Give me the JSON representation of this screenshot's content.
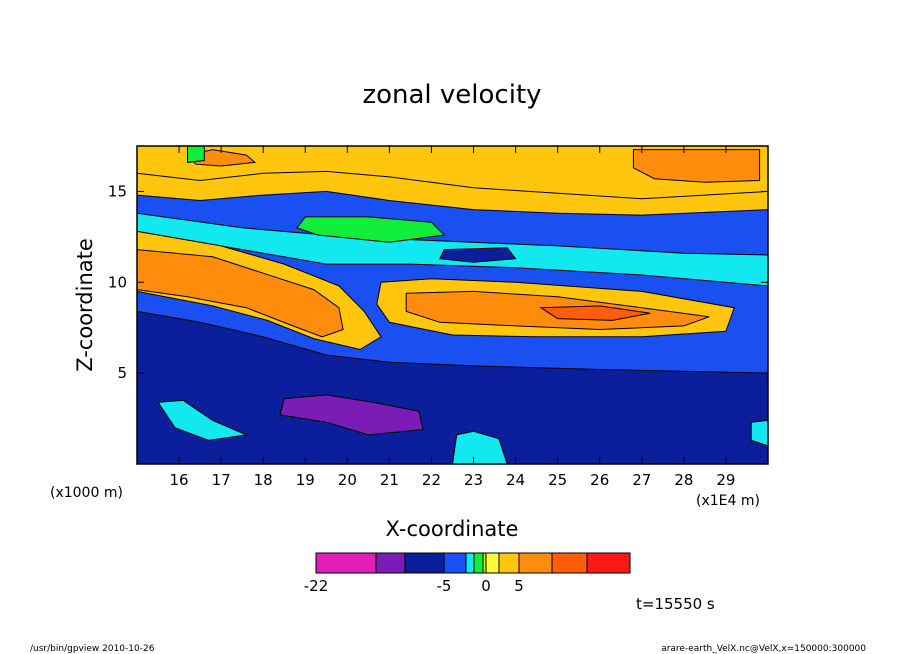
{
  "chart_data": {
    "type": "contour",
    "title": "zonal velocity",
    "xlabel": "X-coordinate",
    "ylabel": "Z-coordinate",
    "x_unit_label": "(x1E4 m)",
    "y_unit_label": "(x1000 m)",
    "xlim": [
      15.0,
      30.0
    ],
    "ylim": [
      0.0,
      17.5
    ],
    "x_ticks": [
      "16",
      "17",
      "18",
      "19",
      "20",
      "21",
      "22",
      "23",
      "24",
      "25",
      "26",
      "27",
      "28",
      "29"
    ],
    "x_tick_values": [
      16,
      17,
      18,
      19,
      20,
      21,
      22,
      23,
      24,
      25,
      26,
      27,
      28,
      29
    ],
    "y_ticks": [
      "5",
      "10",
      "15"
    ],
    "y_tick_values": [
      5,
      10,
      15
    ],
    "colorbar": {
      "colors": [
        "#e01fb8",
        "#7a1cb5",
        "#0b1f9c",
        "#1a4ff2",
        "#12e8f0",
        "#11ee3a",
        "#b5f21a",
        "#fbfb37",
        "#ffc60d",
        "#ff8c0c",
        "#ff5d0a",
        "#f81a13",
        "#f88787"
      ],
      "bounds": [
        -22,
        -15,
        -10,
        -5,
        -3,
        -2,
        -1,
        0,
        1,
        5,
        10,
        15,
        20
      ],
      "labels": [
        "-22",
        "-5",
        "0",
        "5"
      ],
      "label_values": [
        -22,
        -5,
        0,
        5
      ]
    },
    "regions": [
      {
        "name": "upper-surface-positive",
        "level": 1,
        "polygon": [
          [
            15.0,
            17.5
          ],
          [
            30.0,
            17.5
          ],
          [
            30.0,
            14.0
          ],
          [
            27.0,
            13.7
          ],
          [
            25.0,
            13.8
          ],
          [
            23.0,
            14.0
          ],
          [
            21.0,
            14.5
          ],
          [
            19.5,
            15.0
          ],
          [
            18.0,
            14.8
          ],
          [
            16.5,
            14.5
          ],
          [
            15.0,
            14.8
          ]
        ]
      },
      {
        "name": "upper-positive-core",
        "level": 1,
        "polygon": [
          [
            15.0,
            17.5
          ],
          [
            30.0,
            17.5
          ],
          [
            30.0,
            15.0
          ],
          [
            27.0,
            14.6
          ],
          [
            25.0,
            14.9
          ],
          [
            23.0,
            15.2
          ],
          [
            21.0,
            15.8
          ],
          [
            19.5,
            16.1
          ],
          [
            18.0,
            16.0
          ],
          [
            16.5,
            15.6
          ],
          [
            15.0,
            16.0
          ]
        ]
      },
      {
        "name": "upper-orange-right",
        "level": 5,
        "polygon": [
          [
            26.8,
            17.3
          ],
          [
            29.8,
            17.3
          ],
          [
            29.8,
            15.6
          ],
          [
            28.5,
            15.5
          ],
          [
            27.3,
            15.7
          ],
          [
            26.8,
            16.3
          ]
        ]
      },
      {
        "name": "upper-orange-left",
        "level": 5,
        "polygon": [
          [
            16.2,
            17.0
          ],
          [
            16.8,
            17.3
          ],
          [
            17.6,
            17.0
          ],
          [
            17.8,
            16.6
          ],
          [
            17.0,
            16.4
          ],
          [
            16.4,
            16.5
          ]
        ]
      },
      {
        "name": "jet-negative-band",
        "level": -3,
        "polygon": [
          [
            15.0,
            13.8
          ],
          [
            17.5,
            13.0
          ],
          [
            20.0,
            12.5
          ],
          [
            22.0,
            12.3
          ],
          [
            25.0,
            12.0
          ],
          [
            28.0,
            11.6
          ],
          [
            30.0,
            11.5
          ],
          [
            30.0,
            9.8
          ],
          [
            27.0,
            10.4
          ],
          [
            24.0,
            10.8
          ],
          [
            21.5,
            11.0
          ],
          [
            19.5,
            11.0
          ],
          [
            17.5,
            11.8
          ],
          [
            15.0,
            12.8
          ]
        ]
      },
      {
        "name": "jet-negative-core",
        "level": -10,
        "polygon": [
          [
            22.3,
            11.8
          ],
          [
            23.8,
            11.9
          ],
          [
            24.0,
            11.3
          ],
          [
            23.0,
            11.1
          ],
          [
            22.2,
            11.3
          ]
        ]
      },
      {
        "name": "cyan-patch-upper",
        "level": -2,
        "polygon": [
          [
            19.0,
            13.6
          ],
          [
            20.5,
            13.6
          ],
          [
            22.0,
            13.3
          ],
          [
            22.3,
            12.6
          ],
          [
            21.0,
            12.2
          ],
          [
            19.3,
            12.6
          ],
          [
            18.8,
            13.0
          ]
        ]
      },
      {
        "name": "cyan-patch-corner",
        "level": -2,
        "polygon": [
          [
            16.2,
            17.5
          ],
          [
            16.6,
            17.5
          ],
          [
            16.6,
            16.7
          ],
          [
            16.2,
            16.6
          ]
        ]
      },
      {
        "name": "tilted-positive-band",
        "level": 1,
        "polygon": [
          [
            15.0,
            12.8
          ],
          [
            17.0,
            12.0
          ],
          [
            18.5,
            11.0
          ],
          [
            19.8,
            9.8
          ],
          [
            20.4,
            8.4
          ],
          [
            20.8,
            7.0
          ],
          [
            20.3,
            6.3
          ],
          [
            19.2,
            6.9
          ],
          [
            18.1,
            7.9
          ],
          [
            16.8,
            8.7
          ],
          [
            15.0,
            9.5
          ]
        ]
      },
      {
        "name": "tilted-positive-core",
        "level": 5,
        "polygon": [
          [
            15.0,
            11.8
          ],
          [
            16.8,
            11.4
          ],
          [
            18.0,
            10.5
          ],
          [
            19.2,
            9.6
          ],
          [
            19.8,
            8.6
          ],
          [
            19.9,
            7.4
          ],
          [
            19.4,
            7.0
          ],
          [
            18.6,
            7.7
          ],
          [
            17.6,
            8.6
          ],
          [
            16.2,
            9.2
          ],
          [
            15.0,
            9.6
          ]
        ]
      },
      {
        "name": "right-jet-positive",
        "level": 1,
        "polygon": [
          [
            20.8,
            10.0
          ],
          [
            22.0,
            10.2
          ],
          [
            24.0,
            10.0
          ],
          [
            27.0,
            9.5
          ],
          [
            29.2,
            8.6
          ],
          [
            29.0,
            7.3
          ],
          [
            27.0,
            7.0
          ],
          [
            24.5,
            7.0
          ],
          [
            22.5,
            7.1
          ],
          [
            21.0,
            7.8
          ],
          [
            20.7,
            8.8
          ]
        ]
      },
      {
        "name": "right-jet-core",
        "level": 5,
        "polygon": [
          [
            21.4,
            9.4
          ],
          [
            23.0,
            9.5
          ],
          [
            25.0,
            9.2
          ],
          [
            27.0,
            8.6
          ],
          [
            28.6,
            8.1
          ],
          [
            28.0,
            7.6
          ],
          [
            26.0,
            7.4
          ],
          [
            24.0,
            7.6
          ],
          [
            22.2,
            7.8
          ],
          [
            21.4,
            8.4
          ]
        ]
      },
      {
        "name": "right-jet-max",
        "level": 10,
        "polygon": [
          [
            24.6,
            8.6
          ],
          [
            26.0,
            8.7
          ],
          [
            27.2,
            8.3
          ],
          [
            26.3,
            7.9
          ],
          [
            25.0,
            8.0
          ]
        ]
      },
      {
        "name": "lower-negative",
        "level": -10,
        "polygon": [
          [
            15.0,
            8.4
          ],
          [
            16.5,
            7.8
          ],
          [
            18.0,
            7.0
          ],
          [
            19.5,
            6.0
          ],
          [
            21.0,
            5.6
          ],
          [
            23.0,
            5.4
          ],
          [
            26.0,
            5.2
          ],
          [
            30.0,
            5.0
          ],
          [
            30.0,
            0.0
          ],
          [
            15.0,
            0.0
          ]
        ]
      },
      {
        "name": "lower-strong-negative",
        "level": -15,
        "polygon": [
          [
            18.5,
            3.6
          ],
          [
            19.5,
            3.8
          ],
          [
            20.6,
            3.4
          ],
          [
            21.7,
            2.9
          ],
          [
            21.8,
            1.9
          ],
          [
            20.5,
            1.6
          ],
          [
            19.5,
            2.3
          ],
          [
            18.4,
            2.7
          ]
        ]
      },
      {
        "name": "bottom-left-band",
        "level": -3,
        "polygon": [
          [
            15.5,
            3.4
          ],
          [
            16.1,
            3.5
          ],
          [
            16.8,
            2.4
          ],
          [
            17.6,
            1.6
          ],
          [
            16.7,
            1.3
          ],
          [
            15.9,
            2.0
          ]
        ]
      },
      {
        "name": "bottom-right-patch",
        "level": -3,
        "polygon": [
          [
            22.6,
            1.6
          ],
          [
            23.0,
            1.8
          ],
          [
            23.6,
            1.4
          ],
          [
            23.8,
            0.0
          ],
          [
            22.5,
            0.0
          ]
        ]
      },
      {
        "name": "right-edge-patch",
        "level": -3,
        "polygon": [
          [
            29.6,
            2.3
          ],
          [
            30.0,
            2.4
          ],
          [
            30.0,
            1.0
          ],
          [
            29.6,
            1.3
          ]
        ]
      }
    ]
  },
  "time_label": "t=15550 s",
  "footer": {
    "left": "/usr/bin/gpview   2010-10-26",
    "right": "arare-earth_VelX.nc@VelX,x=150000:300000"
  }
}
